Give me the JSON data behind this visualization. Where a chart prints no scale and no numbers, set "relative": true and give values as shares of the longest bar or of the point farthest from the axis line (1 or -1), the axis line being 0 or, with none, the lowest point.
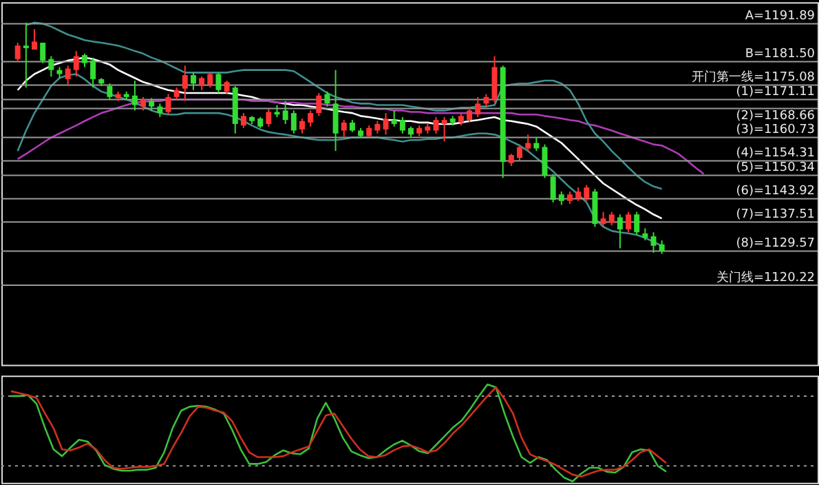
{
  "chart_data": [
    {
      "type": "candlestick",
      "ylim": [
        1098.4,
        1197.8
      ],
      "categories": [
        null,
        null,
        null,
        null,
        null,
        null,
        null,
        null,
        null,
        null,
        null,
        null,
        null,
        null,
        null,
        null,
        null,
        null,
        null,
        null,
        null,
        null,
        null,
        null,
        null,
        null,
        null,
        null,
        null,
        null,
        null,
        null,
        null,
        null,
        null,
        null,
        null,
        null,
        null,
        null,
        null,
        null,
        null,
        null,
        null,
        null,
        null,
        null,
        null,
        null,
        null,
        null,
        null,
        null,
        null,
        null,
        null,
        null,
        null,
        null,
        null,
        null,
        null,
        null,
        null,
        null,
        null,
        null,
        null,
        null,
        null,
        null,
        null,
        null,
        null,
        null,
        null,
        null,
        null,
        null,
        null,
        null,
        null
      ],
      "ohlc": [
        [
          1182.2,
          1186.7,
          1181.5,
          1185.9
        ],
        [
          1185.9,
          1192.2,
          1174.4,
          1185.2
        ],
        [
          1184.8,
          1190.4,
          1184.8,
          1187.0
        ],
        [
          1186.7,
          1186.7,
          1181.1,
          1181.8
        ],
        [
          1182.2,
          1183.0,
          1177.4,
          1179.2
        ],
        [
          1179.2,
          1180.0,
          1177.0,
          1178.1
        ],
        [
          1176.7,
          1180.4,
          1174.8,
          1179.6
        ],
        [
          1179.2,
          1184.4,
          1177.4,
          1183.0
        ],
        [
          1183.3,
          1183.7,
          1180.0,
          1181.1
        ],
        [
          1181.8,
          1182.6,
          1174.4,
          1176.7
        ],
        [
          1176.7,
          1177.0,
          1174.8,
          1175.5
        ],
        [
          1174.8,
          1175.5,
          1171.1,
          1171.8
        ],
        [
          1171.5,
          1173.3,
          1170.7,
          1172.6
        ],
        [
          1172.6,
          1173.3,
          1171.1,
          1171.8
        ],
        [
          1172.2,
          1176.3,
          1168.1,
          1169.6
        ],
        [
          1169.2,
          1171.8,
          1168.1,
          1171.1
        ],
        [
          1170.7,
          1171.5,
          1168.1,
          1169.2
        ],
        [
          1169.2,
          1170.0,
          1166.3,
          1167.4
        ],
        [
          1167.7,
          1172.6,
          1167.0,
          1171.8
        ],
        [
          1171.8,
          1174.4,
          1171.1,
          1173.7
        ],
        [
          1174.1,
          1180.4,
          1170.7,
          1177.8
        ],
        [
          1177.8,
          1178.5,
          1173.7,
          1175.5
        ],
        [
          1174.8,
          1177.4,
          1173.7,
          1177.0
        ],
        [
          1175.2,
          1178.5,
          1174.4,
          1178.1
        ],
        [
          1178.1,
          1178.5,
          1172.9,
          1173.7
        ],
        [
          1173.3,
          1176.3,
          1172.6,
          1175.9
        ],
        [
          1174.4,
          1174.8,
          1161.8,
          1164.4
        ],
        [
          1164.0,
          1167.4,
          1163.3,
          1166.6
        ],
        [
          1166.3,
          1166.6,
          1164.4,
          1165.2
        ],
        [
          1165.9,
          1166.3,
          1163.3,
          1163.7
        ],
        [
          1164.4,
          1168.5,
          1163.7,
          1167.7
        ],
        [
          1167.7,
          1169.6,
          1166.3,
          1167.0
        ],
        [
          1168.1,
          1170.7,
          1164.4,
          1165.5
        ],
        [
          1167.4,
          1168.1,
          1161.8,
          1162.6
        ],
        [
          1162.9,
          1165.9,
          1161.8,
          1165.2
        ],
        [
          1164.8,
          1168.1,
          1163.7,
          1167.4
        ],
        [
          1167.4,
          1172.9,
          1166.6,
          1172.2
        ],
        [
          1172.6,
          1173.3,
          1169.2,
          1170.0
        ],
        [
          1170.0,
          1179.2,
          1157.0,
          1161.8
        ],
        [
          1162.6,
          1165.5,
          1160.7,
          1164.8
        ],
        [
          1164.8,
          1165.5,
          1162.2,
          1162.6
        ],
        [
          1162.6,
          1163.3,
          1160.7,
          1161.1
        ],
        [
          1161.1,
          1164.0,
          1160.7,
          1163.3
        ],
        [
          1162.6,
          1165.2,
          1161.8,
          1164.4
        ],
        [
          1162.9,
          1167.4,
          1161.5,
          1165.9
        ],
        [
          1165.5,
          1168.1,
          1163.7,
          1164.4
        ],
        [
          1165.5,
          1166.3,
          1161.8,
          1162.6
        ],
        [
          1163.3,
          1163.7,
          1160.7,
          1161.5
        ],
        [
          1161.8,
          1164.0,
          1161.1,
          1163.3
        ],
        [
          1162.6,
          1164.4,
          1161.8,
          1163.7
        ],
        [
          1162.6,
          1166.3,
          1161.8,
          1165.5
        ],
        [
          1164.4,
          1166.3,
          1159.6,
          1165.5
        ],
        [
          1165.9,
          1166.6,
          1164.0,
          1164.8
        ],
        [
          1164.8,
          1167.4,
          1164.0,
          1166.6
        ],
        [
          1165.5,
          1168.9,
          1164.8,
          1168.1
        ],
        [
          1167.0,
          1171.8,
          1166.3,
          1170.0
        ],
        [
          1170.0,
          1172.6,
          1169.2,
          1171.8
        ],
        [
          1171.1,
          1183.0,
          1170.3,
          1180.0
        ],
        [
          1180.0,
          1180.4,
          1149.6,
          1154.0
        ],
        [
          1153.7,
          1156.2,
          1152.9,
          1155.9
        ],
        [
          1155.1,
          1158.8,
          1154.4,
          1158.1
        ],
        [
          1157.7,
          1161.5,
          1157.0,
          1159.2
        ],
        [
          1159.2,
          1160.7,
          1157.0,
          1157.7
        ],
        [
          1158.1,
          1158.8,
          1149.6,
          1150.3
        ],
        [
          1150.0,
          1150.7,
          1142.9,
          1143.6
        ],
        [
          1145.1,
          1145.9,
          1142.2,
          1143.3
        ],
        [
          1143.3,
          1145.9,
          1142.5,
          1145.1
        ],
        [
          1144.0,
          1147.0,
          1143.3,
          1145.9
        ],
        [
          1144.0,
          1147.7,
          1143.3,
          1147.0
        ],
        [
          1145.9,
          1146.6,
          1136.2,
          1137.0
        ],
        [
          1137.0,
          1140.3,
          1136.2,
          1138.5
        ],
        [
          1137.3,
          1140.3,
          1136.6,
          1139.6
        ],
        [
          1138.8,
          1139.6,
          1130.3,
          1135.5
        ],
        [
          1135.5,
          1140.3,
          1134.7,
          1139.6
        ],
        [
          1139.6,
          1140.3,
          1134.0,
          1134.7
        ],
        [
          1134.4,
          1135.8,
          1132.5,
          1133.2
        ],
        [
          1133.6,
          1134.7,
          1129.1,
          1131.0
        ],
        [
          1131.4,
          1132.5,
          1128.8,
          1129.5
        ],
        null,
        null,
        null,
        null,
        null
      ],
      "colors": [
        "#ff3333",
        "#33dd33",
        "#ff3333",
        "#33dd33",
        "#33dd33",
        "#33dd33",
        "#ff3333",
        "#ff3333",
        "#33dd33",
        "#33dd33",
        "#33dd33",
        "#33dd33",
        "#ff3333",
        "#33dd33",
        "#33dd33",
        "#ff3333",
        "#33dd33",
        "#33dd33",
        "#ff3333",
        "#ff3333",
        "#ff3333",
        "#33dd33",
        "#ff3333",
        "#ff3333",
        "#33dd33",
        "#ff3333",
        "#33dd33",
        "#ff3333",
        "#33dd33",
        "#33dd33",
        "#ff3333",
        "#33dd33",
        "#33dd33",
        "#33dd33",
        "#ff3333",
        "#ff3333",
        "#ff3333",
        "#33dd33",
        "#33dd33",
        "#ff3333",
        "#33dd33",
        "#33dd33",
        "#ff3333",
        "#ff3333",
        "#ff3333",
        "#33dd33",
        "#33dd33",
        "#33dd33",
        "#ff3333",
        "#ff3333",
        "#ff3333",
        "#ff3333",
        "#33dd33",
        "#ff3333",
        "#ff3333",
        "#ff3333",
        "#ff3333",
        "#ff3333",
        "#33dd33",
        "#ff3333",
        "#ff3333",
        "#ff3333",
        "#33dd33",
        "#33dd33",
        "#33dd33",
        "#33dd33",
        "#ff3333",
        "#ff3333",
        "#ff3333",
        "#33dd33",
        "#ff3333",
        "#ff3333",
        "#33dd33",
        "#ff3333",
        "#33dd33",
        "#33dd33",
        "#33dd33",
        "#33dd33",
        null,
        null,
        null,
        null,
        null
      ],
      "series": [
        {
          "type": "line",
          "color": "#ffffff",
          "values": [
            1173.7,
            1176.3,
            1178.1,
            1179.2,
            1180.4,
            1181.1,
            1181.8,
            1182.2,
            1182.6,
            1182.2,
            1181.5,
            1180.7,
            1179.2,
            1178.1,
            1177.0,
            1175.9,
            1175.2,
            1174.4,
            1173.7,
            1173.3,
            1172.9,
            1172.9,
            1172.9,
            1172.9,
            1172.9,
            1172.9,
            1172.6,
            1172.2,
            1171.8,
            1171.1,
            1170.7,
            1170.3,
            1170.0,
            1169.6,
            1169.6,
            1169.2,
            1168.9,
            1168.5,
            1168.1,
            1167.7,
            1167.4,
            1166.6,
            1166.3,
            1165.9,
            1165.5,
            1165.5,
            1165.2,
            1165.2,
            1164.8,
            1164.8,
            1164.4,
            1164.4,
            1164.4,
            1164.8,
            1165.2,
            1165.5,
            1165.9,
            1166.3,
            1165.5,
            1165.2,
            1164.8,
            1164.4,
            1163.7,
            1162.2,
            1160.7,
            1159.2,
            1157.0,
            1154.8,
            1152.5,
            1150.3,
            1148.1,
            1146.6,
            1145.1,
            1143.6,
            1142.2,
            1141.0,
            1139.6,
            1138.5,
            null,
            null,
            null,
            null,
            null
          ]
        },
        {
          "type": "line",
          "color": "#b03cb8",
          "values": [
            1154.8,
            1156.2,
            1157.7,
            1159.2,
            1160.7,
            1161.8,
            1162.9,
            1164.0,
            1165.2,
            1166.3,
            1167.4,
            1168.1,
            1168.9,
            1169.6,
            1170.3,
            1170.5,
            1170.7,
            1170.7,
            1171.1,
            1171.1,
            1171.1,
            1171.1,
            1171.1,
            1171.1,
            1171.1,
            1171.1,
            1171.1,
            1171.1,
            1170.7,
            1170.7,
            1170.7,
            1170.3,
            1170.3,
            1170.3,
            1170.0,
            1170.0,
            1170.0,
            1169.6,
            1169.6,
            1169.2,
            1169.2,
            1168.9,
            1168.9,
            1168.5,
            1168.5,
            1168.1,
            1168.1,
            1167.7,
            1167.7,
            1167.4,
            1167.4,
            1167.4,
            1167.4,
            1167.4,
            1167.4,
            1167.4,
            1167.4,
            1167.4,
            1167.4,
            1167.4,
            1167.0,
            1167.0,
            1167.0,
            1166.6,
            1166.3,
            1165.9,
            1165.5,
            1165.2,
            1164.4,
            1164.0,
            1163.3,
            1162.6,
            1161.8,
            1161.1,
            1160.3,
            1159.6,
            1158.8,
            1158.5,
            1157.4,
            1156.2,
            1154.4,
            1152.5,
            1150.7
          ]
        },
        {
          "type": "line",
          "color": "#3f8f8f",
          "values": [
            null,
            1191.5,
            1192.2,
            1191.9,
            1191.1,
            1190.0,
            1188.9,
            1188.2,
            1187.4,
            1187.0,
            1186.7,
            1186.3,
            1185.9,
            1185.2,
            1184.4,
            1183.7,
            1182.6,
            1181.8,
            1180.7,
            1179.6,
            1178.5,
            1178.5,
            1178.5,
            1178.5,
            1178.5,
            1178.5,
            1178.9,
            1179.2,
            1179.2,
            1179.2,
            1179.2,
            1179.2,
            1179.2,
            1178.9,
            1177.4,
            1175.9,
            1174.4,
            1172.9,
            1171.8,
            1171.1,
            1170.3,
            1170.0,
            1170.0,
            1169.6,
            1169.6,
            1169.6,
            1169.6,
            1169.2,
            1168.9,
            1168.5,
            1168.1,
            1168.1,
            1168.5,
            1168.9,
            1168.9,
            1169.2,
            1169.2,
            1169.6,
            1174.8,
            1175.2,
            1175.5,
            1175.5,
            1175.9,
            1176.3,
            1176.3,
            1175.5,
            1173.7,
            1170.0,
            1165.2,
            1161.8,
            1159.6,
            1157.0,
            1154.8,
            1152.5,
            1150.3,
            1148.5,
            1147.3,
            1146.6,
            null,
            null,
            null,
            null,
            null
          ]
        },
        {
          "type": "line",
          "color": "#3f8f8f",
          "values": [
            1157.0,
            1162.6,
            1167.4,
            1171.1,
            1174.8,
            1177.0,
            1177.8,
            1178.1,
            1176.7,
            1174.8,
            1173.3,
            1172.6,
            1171.8,
            1171.1,
            1170.3,
            1169.2,
            1168.1,
            1167.4,
            1167.0,
            1167.0,
            1167.4,
            1167.4,
            1167.4,
            1167.4,
            1167.4,
            1167.0,
            1166.3,
            1165.2,
            1164.0,
            1162.9,
            1162.2,
            1161.8,
            1161.5,
            1161.1,
            1160.7,
            1160.3,
            1160.0,
            1160.0,
            1160.0,
            1160.3,
            1160.7,
            1160.7,
            1160.7,
            1160.7,
            1160.3,
            1160.0,
            1159.6,
            1160.0,
            1160.0,
            1160.3,
            1160.3,
            1160.7,
            1160.7,
            1161.1,
            1161.5,
            1161.8,
            1161.8,
            1161.5,
            1160.7,
            1159.6,
            1158.5,
            1157.0,
            1155.1,
            1153.3,
            1151.4,
            1149.2,
            1147.0,
            1145.1,
            1142.9,
            1138.5,
            1136.2,
            1135.1,
            1134.7,
            1134.4,
            1134.0,
            1133.2,
            1132.1,
            1131.0,
            null,
            null,
            null,
            null,
            null
          ]
        }
      ],
      "ref_lines": [
        {
          "axis": "y",
          "value": 1191.89,
          "label": "A=1191.89"
        },
        {
          "axis": "y",
          "value": 1181.5,
          "label": "B=1181.50"
        },
        {
          "axis": "y",
          "value": 1175.08,
          "label": "开门第一线=1175.08"
        },
        {
          "axis": "y",
          "value": 1171.11,
          "label": "(1)=1171.11"
        },
        {
          "axis": "y",
          "value": 1168.66,
          "label": "(2)=1168.66"
        },
        {
          "axis": "y",
          "value": 1160.73,
          "label": "(3)=1160.73"
        },
        {
          "axis": "y",
          "value": 1154.31,
          "label": "(4)=1154.31"
        },
        {
          "axis": "y",
          "value": 1150.34,
          "label": "(5)=1150.34"
        },
        {
          "axis": "y",
          "value": 1143.92,
          "label": "(6)=1143.92"
        },
        {
          "axis": "y",
          "value": 1137.51,
          "label": "(7)=1137.51"
        },
        {
          "axis": "y",
          "value": 1129.57,
          "label": "(8)=1129.57"
        },
        {
          "axis": "y",
          "value": 1120.22,
          "label": "关门线=1120.22"
        }
      ]
    },
    {
      "type": "line",
      "relative": true,
      "categories": [
        null,
        null,
        null,
        null,
        null,
        null,
        null,
        null,
        null,
        null,
        null,
        null,
        null,
        null,
        null,
        null,
        null,
        null,
        null,
        null,
        null,
        null,
        null,
        null,
        null,
        null,
        null,
        null,
        null,
        null,
        null,
        null,
        null,
        null,
        null,
        null,
        null,
        null,
        null,
        null,
        null,
        null,
        null,
        null,
        null,
        null,
        null,
        null,
        null,
        null,
        null,
        null,
        null,
        null,
        null,
        null,
        null,
        null,
        null,
        null,
        null,
        null,
        null,
        null,
        null,
        null,
        null,
        null,
        null,
        null,
        null,
        null,
        null,
        null,
        null,
        null,
        null,
        null
      ],
      "series": [
        {
          "color": "#3cc03c",
          "values": [
            0.88,
            0.88,
            0.89,
            0.8,
            0.55,
            0.33,
            0.26,
            0.35,
            0.43,
            0.41,
            0.32,
            0.17,
            0.13,
            0.11,
            0.11,
            0.12,
            0.12,
            0.14,
            0.3,
            0.55,
            0.73,
            0.77,
            0.78,
            0.77,
            0.74,
            0.7,
            0.53,
            0.33,
            0.18,
            0.18,
            0.2,
            0.27,
            0.32,
            0.29,
            0.28,
            0.34,
            0.65,
            0.81,
            0.65,
            0.45,
            0.31,
            0.27,
            0.24,
            0.25,
            0.32,
            0.38,
            0.42,
            0.37,
            0.31,
            0.29,
            0.38,
            0.47,
            0.56,
            0.63,
            0.75,
            0.88,
            1.0,
            0.97,
            0.7,
            0.46,
            0.25,
            0.19,
            0.25,
            0.22,
            0.12,
            0.04,
            0.0,
            0.08,
            0.14,
            0.14,
            0.1,
            0.09,
            0.15,
            0.3,
            0.33,
            0.32,
            0.16,
            0.1
          ]
        },
        {
          "color": "#d03020",
          "values": [
            0.93,
            0.91,
            0.89,
            0.86,
            0.7,
            0.55,
            0.33,
            0.32,
            0.35,
            0.39,
            0.33,
            0.22,
            0.14,
            0.13,
            0.14,
            0.15,
            0.15,
            0.16,
            0.18,
            0.35,
            0.5,
            0.67,
            0.77,
            0.76,
            0.73,
            0.71,
            0.62,
            0.45,
            0.3,
            0.25,
            0.25,
            0.25,
            0.26,
            0.3,
            0.33,
            0.36,
            0.52,
            0.68,
            0.7,
            0.57,
            0.44,
            0.33,
            0.26,
            0.25,
            0.27,
            0.32,
            0.36,
            0.37,
            0.34,
            0.3,
            0.32,
            0.4,
            0.5,
            0.58,
            0.68,
            0.78,
            0.88,
            0.97,
            0.85,
            0.7,
            0.45,
            0.28,
            0.24,
            0.21,
            0.17,
            0.12,
            0.07,
            0.05,
            0.08,
            0.11,
            0.12,
            0.12,
            0.15,
            0.22,
            0.3,
            0.33,
            0.26,
            0.19
          ]
        }
      ],
      "ref_lines": [
        {
          "axis": "y",
          "value": 0.88,
          "line_style": "dotted"
        },
        {
          "axis": "y",
          "value": 0.16,
          "line_style": "dotted"
        }
      ]
    }
  ]
}
